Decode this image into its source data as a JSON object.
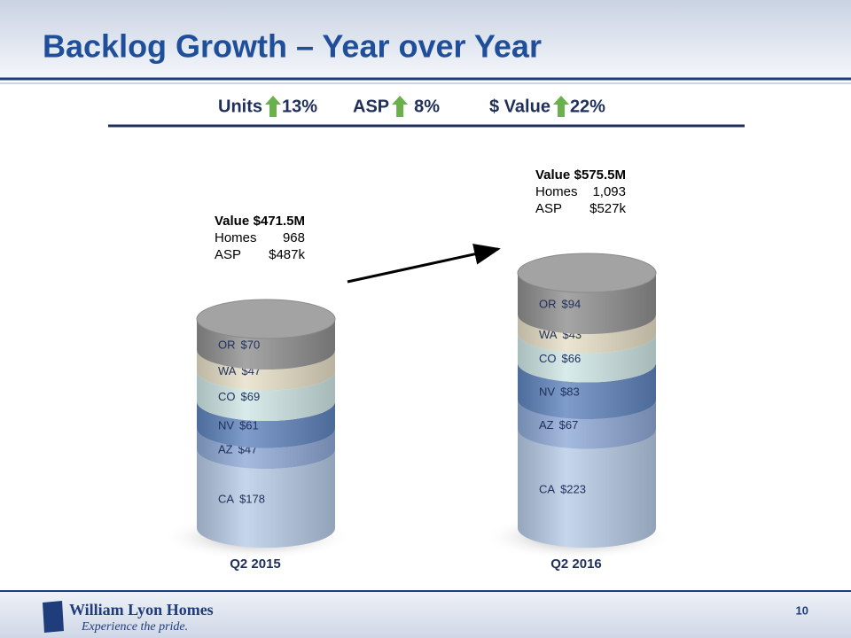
{
  "slide": {
    "title": "Backlog Growth – Year over Year",
    "page": "10",
    "logo": {
      "name": "William Lyon Homes",
      "tagline": "Experience the pride."
    },
    "headline": [
      {
        "label": "Units",
        "change": "13%"
      },
      {
        "label": "ASP",
        "change": "8%"
      },
      {
        "label": "$ Value",
        "change": "22%"
      }
    ]
  },
  "chart_data": {
    "type": "bar",
    "stacked": true,
    "categories": [
      "Q2 2015",
      "Q2 2016"
    ],
    "series": [
      {
        "name": "CA",
        "color": "#b7cbe6",
        "values": [
          178,
          223
        ],
        "value_labels": [
          "$178",
          "$223"
        ]
      },
      {
        "name": "AZ",
        "color": "#8ea9d6",
        "values": [
          47,
          67
        ],
        "value_labels": [
          "$47",
          "$67"
        ]
      },
      {
        "name": "NV",
        "color": "#5f84bd",
        "values": [
          61,
          83
        ],
        "value_labels": [
          "$61",
          "$83"
        ]
      },
      {
        "name": "CO",
        "color": "#cfe7e6",
        "values": [
          69,
          66
        ],
        "value_labels": [
          "$69",
          "$66"
        ]
      },
      {
        "name": "WA",
        "color": "#e6dfc6",
        "values": [
          47,
          43
        ],
        "value_labels": [
          "$47",
          "$43"
        ]
      },
      {
        "name": "OR",
        "color": "#8f8f8f",
        "values": [
          70,
          94
        ],
        "value_labels": [
          "$70",
          "$94"
        ]
      }
    ],
    "callouts": [
      [
        {
          "label": "Value",
          "text": "$471.5M"
        },
        {
          "label": "Homes",
          "text": "968"
        },
        {
          "label": "ASP",
          "text": "$487k"
        }
      ],
      [
        {
          "label": "Value",
          "text": "$575.5M"
        },
        {
          "label": "Homes",
          "text": "1,093"
        },
        {
          "label": "ASP",
          "text": "$527k"
        }
      ]
    ]
  }
}
